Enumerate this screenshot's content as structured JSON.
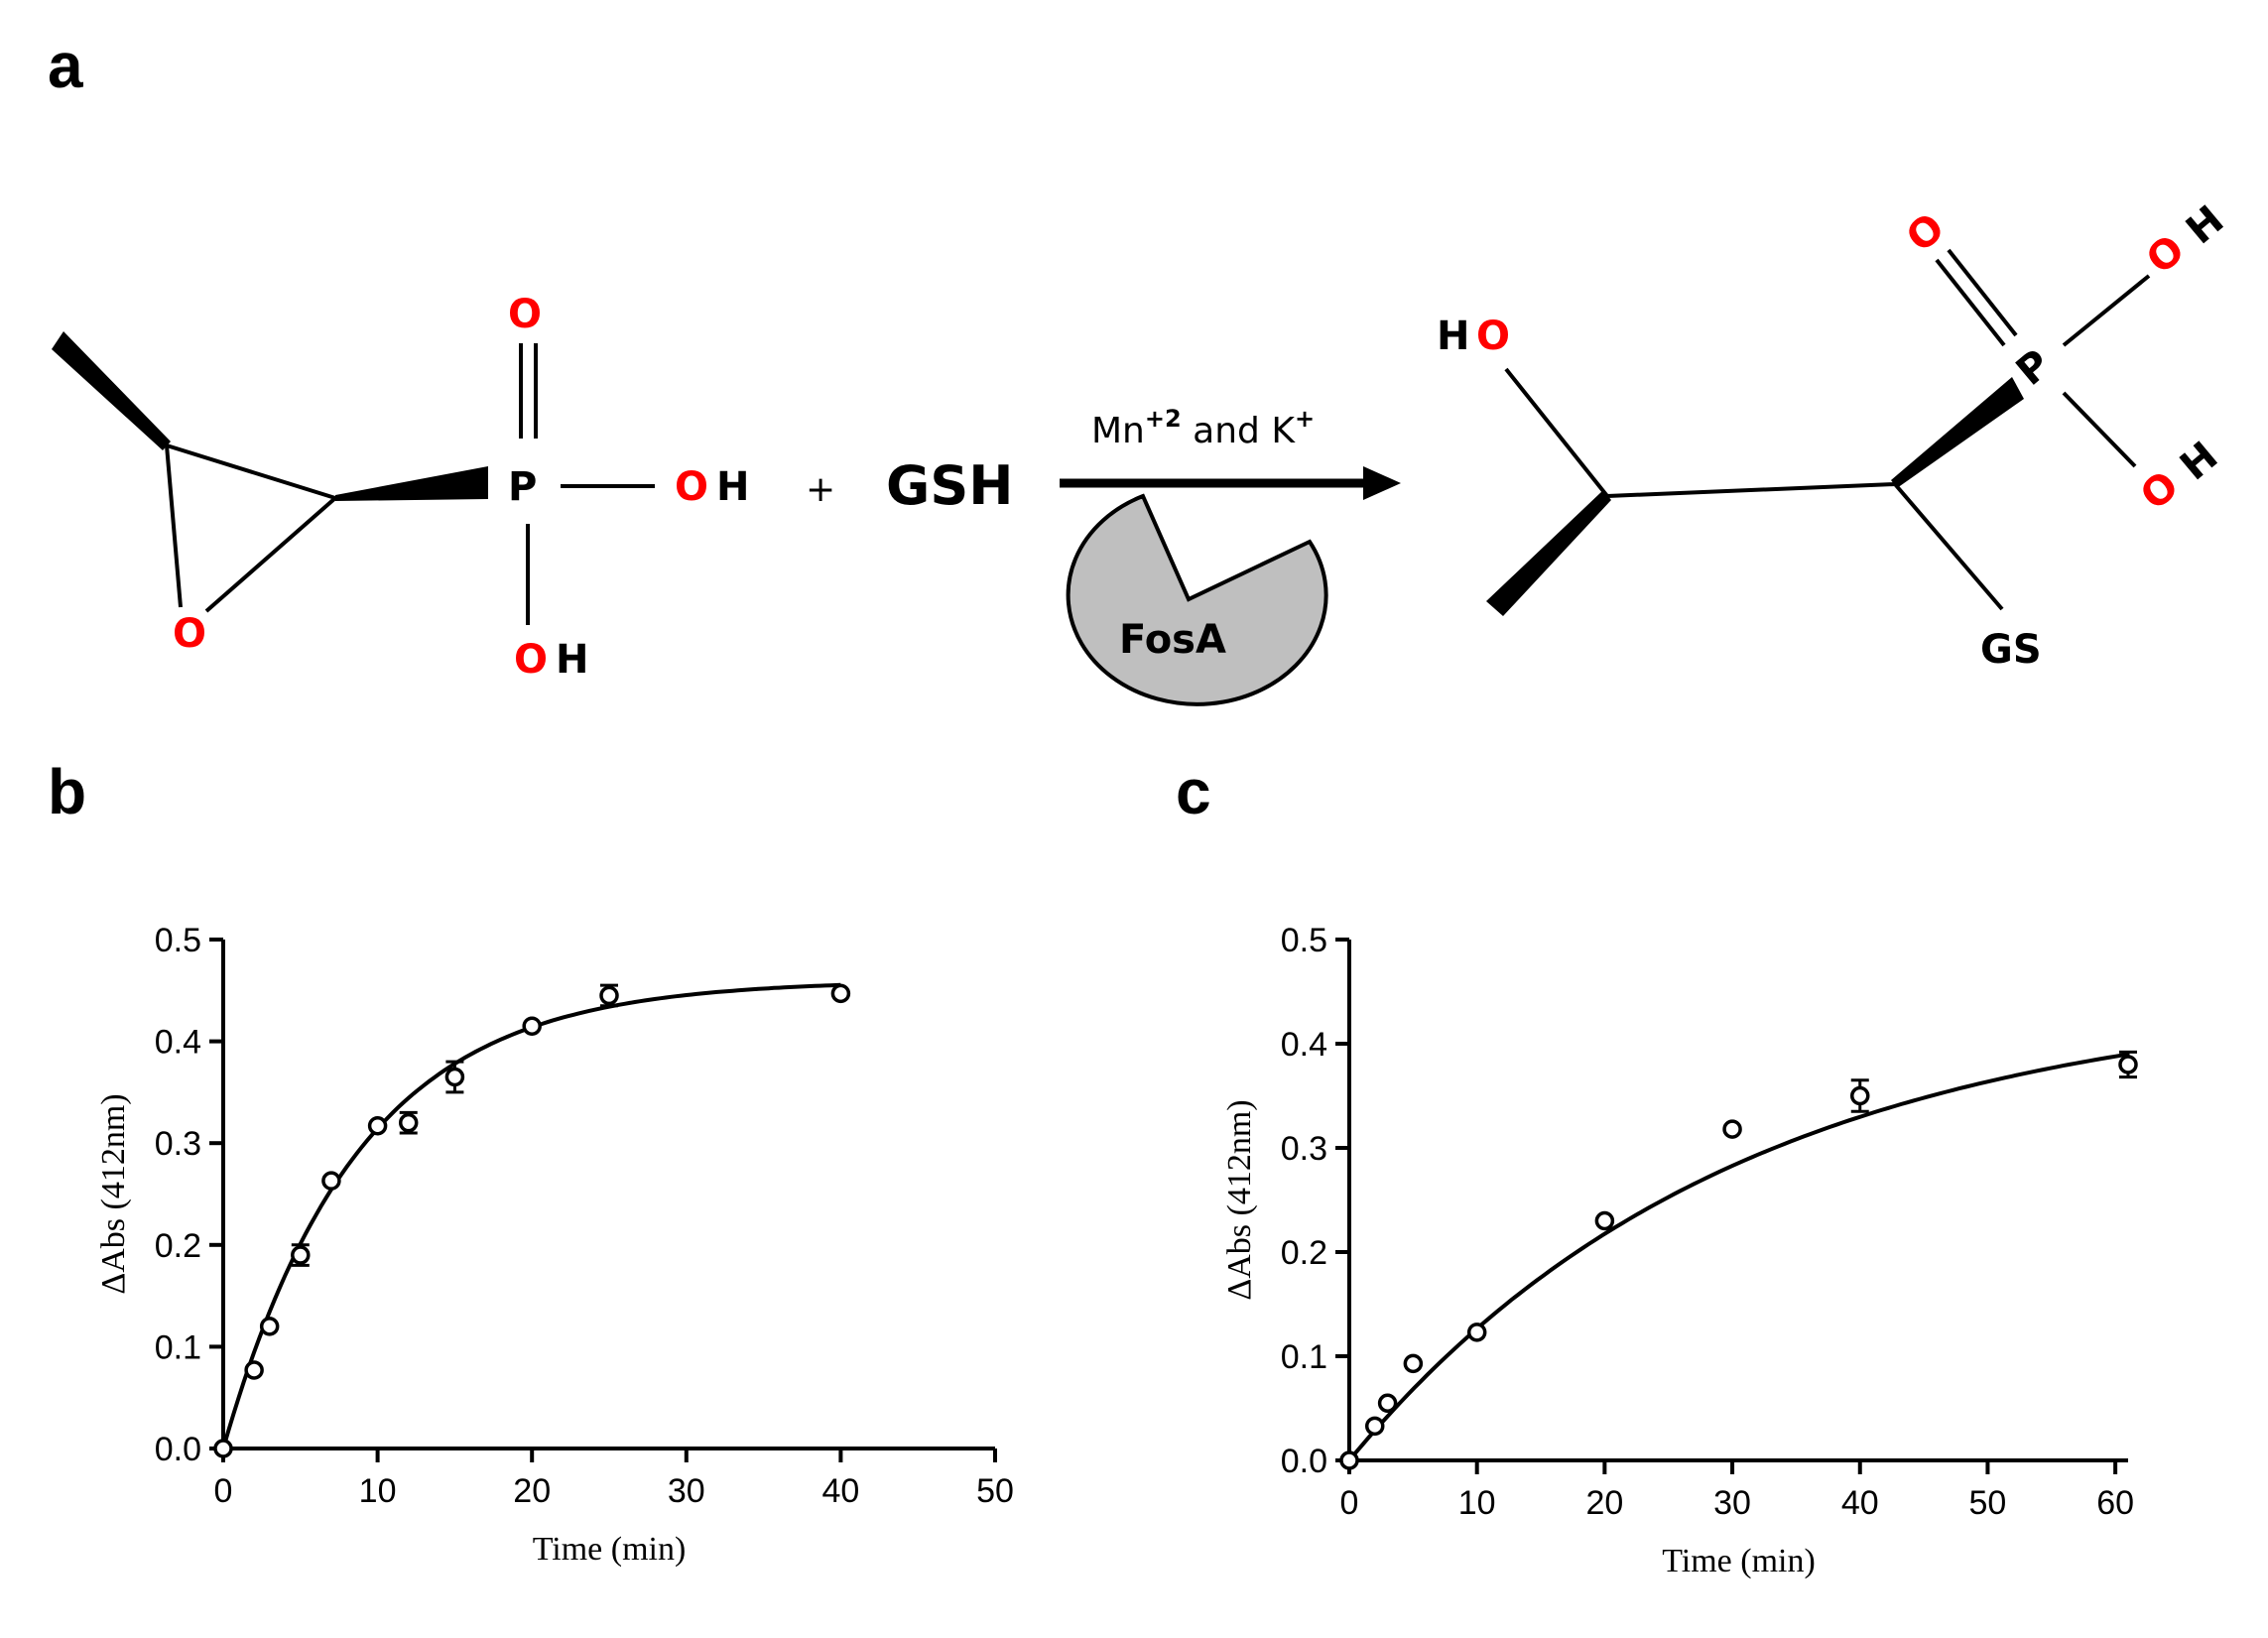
{
  "panels": {
    "a": "a",
    "b": "b",
    "c": "c"
  },
  "reaction": {
    "plus": "+",
    "reagent": "GSH",
    "condition_prefix": "Mn",
    "condition_sup1": "+2",
    "condition_mid": " and K",
    "condition_sup2": "+",
    "enzyme": "FosA",
    "substrate_atoms": {
      "o_ring": "O",
      "p": "P",
      "o_double": "O",
      "o_right": "O",
      "h_right": "H",
      "o_bottom": "O",
      "h_bottom": "H"
    },
    "product_atoms": {
      "h_left": "H",
      "o_left": "O",
      "p": "P",
      "o_double": "O",
      "o_top": "O",
      "h_top": "H",
      "o_bottom": "O",
      "h_bottom": "H",
      "gs": "GS"
    }
  },
  "colors": {
    "oxygen": "#ff0000",
    "enzyme_fill": "#bfbfbf"
  },
  "chart_data": [
    {
      "type": "scatter",
      "panel": "b",
      "xlabel": "Time (min)",
      "ylabel": "ΔAbs (412nm)",
      "xlim": [
        0,
        50
      ],
      "ylim": [
        0,
        0.5
      ],
      "xticks": [
        "0",
        "10",
        "20",
        "30",
        "40",
        "50"
      ],
      "yticks": [
        "0.0",
        "0.1",
        "0.2",
        "0.3",
        "0.4",
        "0.5"
      ],
      "points": [
        {
          "x": 0,
          "y": 0.0,
          "err": 0.0
        },
        {
          "x": 2,
          "y": 0.077,
          "err": 0.0
        },
        {
          "x": 3,
          "y": 0.12,
          "err": 0.0
        },
        {
          "x": 5,
          "y": 0.19,
          "err": 0.01
        },
        {
          "x": 7,
          "y": 0.263,
          "err": 0.0
        },
        {
          "x": 10,
          "y": 0.317,
          "err": 0.0
        },
        {
          "x": 12,
          "y": 0.32,
          "err": 0.01
        },
        {
          "x": 15,
          "y": 0.365,
          "err": 0.015
        },
        {
          "x": 20,
          "y": 0.415,
          "err": 0.0
        },
        {
          "x": 25,
          "y": 0.445,
          "err": 0.01
        },
        {
          "x": 40,
          "y": 0.447,
          "err": 0.0
        }
      ],
      "fit": {
        "model": "one-phase",
        "ymax": 0.46,
        "k": 0.115,
        "xmax": 40
      }
    },
    {
      "type": "scatter",
      "panel": "c",
      "xlabel": "Time (min)",
      "ylabel": "ΔAbs (412nm)",
      "xlim": [
        0,
        61
      ],
      "ylim": [
        0,
        0.5
      ],
      "xticks": [
        "0",
        "10",
        "20",
        "30",
        "40",
        "50",
        "60"
      ],
      "yticks": [
        "0.0",
        "0.1",
        "0.2",
        "0.3",
        "0.4",
        "0.5"
      ],
      "points": [
        {
          "x": 0,
          "y": 0.0,
          "err": 0.0
        },
        {
          "x": 2,
          "y": 0.033,
          "err": 0.0
        },
        {
          "x": 3,
          "y": 0.055,
          "err": 0.0
        },
        {
          "x": 5,
          "y": 0.093,
          "err": 0.0
        },
        {
          "x": 10,
          "y": 0.123,
          "err": 0.0
        },
        {
          "x": 20,
          "y": 0.23,
          "err": 0.0
        },
        {
          "x": 30,
          "y": 0.318,
          "err": 0.0
        },
        {
          "x": 40,
          "y": 0.35,
          "err": 0.015
        },
        {
          "x": 61,
          "y": 0.38,
          "err": 0.012
        }
      ],
      "fit": {
        "model": "one-phase",
        "ymax": 0.45,
        "k": 0.033,
        "xmax": 61
      }
    }
  ]
}
